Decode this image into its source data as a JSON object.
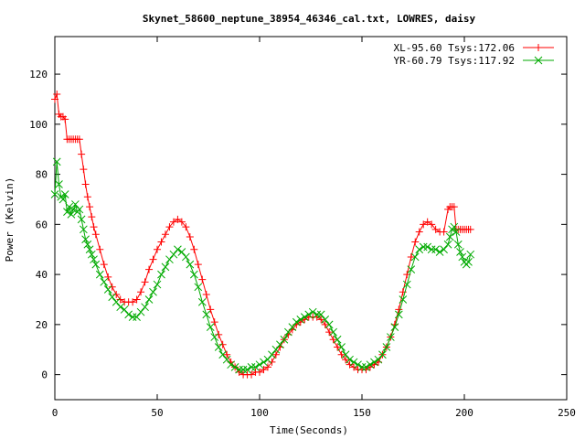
{
  "chart_data": {
    "type": "line",
    "title": "Skynet_58600_neptune_38954_46346_cal.txt, LOWRES, daisy",
    "xlabel": "Time(Seconds)",
    "ylabel": "Power (Kelvin)",
    "xlim": [
      0,
      250
    ],
    "ylim": [
      -10,
      135
    ],
    "xticks": [
      "0",
      "50",
      "100",
      "150",
      "200",
      "250"
    ],
    "yticks": [
      "0",
      "20",
      "40",
      "60",
      "80",
      "100",
      "120"
    ],
    "grid": false,
    "legend_position": "top-right",
    "series": [
      {
        "name": "XL-95.60 Tsys:172.06",
        "color": "#ff0000",
        "marker": "plus",
        "x": [
          0,
          1,
          2,
          3,
          4,
          5,
          6,
          7,
          8,
          9,
          10,
          11,
          12,
          13,
          14,
          15,
          16,
          17,
          18,
          19,
          20,
          22,
          24,
          26,
          28,
          30,
          32,
          34,
          36,
          38,
          40,
          42,
          44,
          46,
          48,
          50,
          52,
          54,
          56,
          58,
          60,
          62,
          64,
          66,
          68,
          70,
          72,
          74,
          76,
          78,
          80,
          82,
          84,
          86,
          88,
          90,
          92,
          94,
          96,
          98,
          100,
          102,
          104,
          106,
          108,
          110,
          112,
          114,
          116,
          118,
          120,
          122,
          124,
          126,
          128,
          130,
          132,
          134,
          136,
          138,
          140,
          142,
          144,
          146,
          148,
          150,
          152,
          154,
          156,
          158,
          160,
          162,
          164,
          166,
          168,
          170,
          172,
          174,
          176,
          178,
          180,
          182,
          184,
          186,
          188,
          190,
          192,
          193,
          194,
          195,
          196,
          197,
          198,
          199,
          200,
          201,
          202,
          203
        ],
        "values": [
          110,
          112,
          104,
          103,
          103,
          102,
          94,
          94,
          94,
          94,
          94,
          94,
          94,
          88,
          82,
          76,
          71,
          67,
          63,
          59,
          56,
          50,
          44,
          39,
          35,
          32,
          30,
          29,
          29,
          29,
          30,
          33,
          37,
          42,
          46,
          50,
          53,
          56,
          59,
          61,
          62,
          61,
          59,
          55,
          50,
          44,
          38,
          32,
          26,
          21,
          16,
          12,
          8,
          5,
          3,
          1,
          0,
          0,
          0,
          1,
          1,
          2,
          3,
          5,
          8,
          11,
          14,
          16,
          18,
          20,
          21,
          22,
          23,
          23,
          23,
          22,
          20,
          17,
          14,
          11,
          8,
          6,
          4,
          3,
          2,
          2,
          2,
          3,
          4,
          5,
          8,
          11,
          15,
          20,
          26,
          33,
          40,
          47,
          53,
          57,
          60,
          61,
          60,
          58,
          57,
          57,
          66,
          67,
          67,
          67,
          58,
          58,
          58,
          58,
          58,
          58,
          58,
          58
        ]
      },
      {
        "name": "YR-60.79 Tsys:117.92",
        "color": "#00aa00",
        "marker": "x",
        "x": [
          0,
          1,
          2,
          3,
          4,
          5,
          6,
          7,
          8,
          9,
          10,
          11,
          12,
          13,
          14,
          15,
          16,
          17,
          18,
          19,
          20,
          22,
          24,
          26,
          28,
          30,
          32,
          34,
          36,
          38,
          40,
          42,
          44,
          46,
          48,
          50,
          52,
          54,
          56,
          58,
          60,
          62,
          64,
          66,
          68,
          70,
          72,
          74,
          76,
          78,
          80,
          82,
          84,
          86,
          88,
          90,
          92,
          94,
          96,
          98,
          100,
          102,
          104,
          106,
          108,
          110,
          112,
          114,
          116,
          118,
          120,
          122,
          124,
          126,
          128,
          130,
          132,
          134,
          136,
          138,
          140,
          142,
          144,
          146,
          148,
          150,
          152,
          154,
          156,
          158,
          160,
          162,
          164,
          166,
          168,
          170,
          172,
          174,
          176,
          178,
          180,
          182,
          184,
          186,
          188,
          190,
          192,
          193,
          194,
          195,
          196,
          197,
          198,
          199,
          200,
          201,
          202,
          203
        ],
        "values": [
          72,
          85,
          76,
          71,
          70,
          72,
          65,
          67,
          64,
          66,
          68,
          65,
          66,
          62,
          58,
          54,
          52,
          50,
          48,
          46,
          44,
          40,
          37,
          34,
          31,
          29,
          27,
          26,
          24,
          23,
          23,
          25,
          27,
          30,
          33,
          36,
          40,
          43,
          46,
          48,
          50,
          49,
          47,
          44,
          40,
          35,
          29,
          24,
          19,
          15,
          11,
          8,
          6,
          4,
          3,
          2,
          2,
          2,
          3,
          3,
          4,
          5,
          6,
          8,
          10,
          12,
          14,
          17,
          19,
          21,
          22,
          23,
          24,
          25,
          24,
          24,
          22,
          20,
          17,
          14,
          11,
          8,
          6,
          5,
          4,
          3,
          3,
          4,
          5,
          6,
          8,
          11,
          15,
          19,
          24,
          30,
          36,
          42,
          47,
          50,
          51,
          51,
          50,
          50,
          49,
          50,
          52,
          55,
          58,
          59,
          57,
          52,
          49,
          47,
          45,
          44,
          45,
          48
        ]
      }
    ]
  }
}
